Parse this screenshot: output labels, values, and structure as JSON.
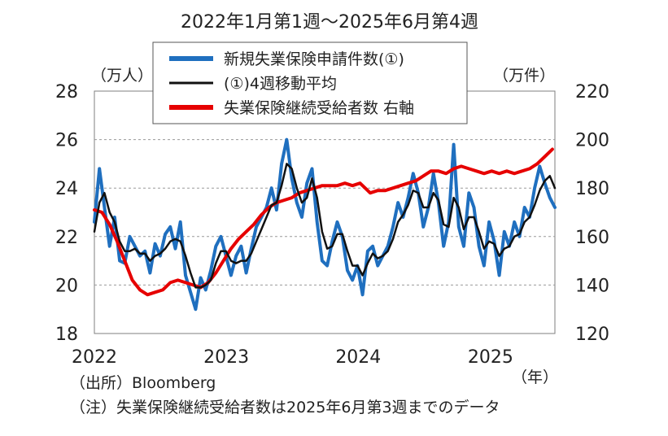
{
  "chart_data": {
    "type": "line",
    "title": "2022年1月第1週～2025年6月第4週",
    "y_left_unit": "（万人）",
    "y_right_unit": "（万件）",
    "x_unit": "（年）",
    "y_left_range": [
      18,
      28
    ],
    "y_left_ticks": [
      "18",
      "20",
      "22",
      "24",
      "26",
      "28"
    ],
    "y_right_range": [
      120,
      220
    ],
    "y_right_ticks": [
      "120",
      "140",
      "160",
      "180",
      "200",
      "220"
    ],
    "x_range": [
      "2022-01",
      "2025-06"
    ],
    "x_tick_labels": [
      "2022",
      "2023",
      "2024",
      "2025"
    ],
    "grid": "horizontal-dashed",
    "legend_position": "top-center",
    "series": [
      {
        "name": "新規失業保険申請件数(①)",
        "color": "#1f6fbf",
        "axis": "left",
        "points": [
          [
            "2022-01-01",
            22.6
          ],
          [
            "2022-01-15",
            24.8
          ],
          [
            "2022-01-29",
            23.2
          ],
          [
            "2022-02-12",
            21.6
          ],
          [
            "2022-02-26",
            22.8
          ],
          [
            "2022-03-12",
            21.0
          ],
          [
            "2022-03-26",
            20.9
          ],
          [
            "2022-04-09",
            22.0
          ],
          [
            "2022-04-23",
            21.6
          ],
          [
            "2022-05-07",
            21.2
          ],
          [
            "2022-05-21",
            21.4
          ],
          [
            "2022-06-04",
            20.5
          ],
          [
            "2022-06-18",
            21.7
          ],
          [
            "2022-07-02",
            21.2
          ],
          [
            "2022-07-16",
            22.1
          ],
          [
            "2022-07-30",
            22.4
          ],
          [
            "2022-08-13",
            21.5
          ],
          [
            "2022-08-27",
            22.6
          ],
          [
            "2022-09-10",
            20.4
          ],
          [
            "2022-09-24",
            19.7
          ],
          [
            "2022-10-08",
            19.0
          ],
          [
            "2022-10-22",
            20.3
          ],
          [
            "2022-11-05",
            19.8
          ],
          [
            "2022-11-19",
            20.6
          ],
          [
            "2022-12-03",
            21.6
          ],
          [
            "2022-12-17",
            22.0
          ],
          [
            "2022-12-31",
            21.2
          ],
          [
            "2023-01-14",
            20.4
          ],
          [
            "2023-01-28",
            21.2
          ],
          [
            "2023-02-11",
            21.6
          ],
          [
            "2023-02-25",
            20.5
          ],
          [
            "2023-03-11",
            21.5
          ],
          [
            "2023-03-25",
            22.4
          ],
          [
            "2023-04-08",
            22.8
          ],
          [
            "2023-04-22",
            23.2
          ],
          [
            "2023-05-06",
            24.0
          ],
          [
            "2023-05-20",
            23.1
          ],
          [
            "2023-06-03",
            25.0
          ],
          [
            "2023-06-17",
            26.0
          ],
          [
            "2023-07-01",
            24.4
          ],
          [
            "2023-07-15",
            23.4
          ],
          [
            "2023-07-29",
            22.8
          ],
          [
            "2023-08-12",
            24.2
          ],
          [
            "2023-08-26",
            24.8
          ],
          [
            "2023-09-09",
            22.6
          ],
          [
            "2023-09-23",
            21.0
          ],
          [
            "2023-10-07",
            20.8
          ],
          [
            "2023-10-21",
            21.8
          ],
          [
            "2023-11-04",
            22.6
          ],
          [
            "2023-11-18",
            22.0
          ],
          [
            "2023-12-02",
            20.6
          ],
          [
            "2023-12-16",
            20.2
          ],
          [
            "2023-12-30",
            20.8
          ],
          [
            "2024-01-13",
            19.6
          ],
          [
            "2024-01-27",
            21.4
          ],
          [
            "2024-02-10",
            21.6
          ],
          [
            "2024-02-24",
            20.8
          ],
          [
            "2024-03-09",
            21.2
          ],
          [
            "2024-03-23",
            21.6
          ],
          [
            "2024-04-06",
            22.4
          ],
          [
            "2024-04-20",
            23.4
          ],
          [
            "2024-05-04",
            22.8
          ],
          [
            "2024-05-18",
            23.6
          ],
          [
            "2024-06-01",
            24.6
          ],
          [
            "2024-06-15",
            23.8
          ],
          [
            "2024-06-29",
            22.4
          ],
          [
            "2024-07-13",
            23.2
          ],
          [
            "2024-07-27",
            24.6
          ],
          [
            "2024-08-10",
            23.4
          ],
          [
            "2024-08-24",
            21.6
          ],
          [
            "2024-09-07",
            22.6
          ],
          [
            "2024-09-21",
            25.8
          ],
          [
            "2024-10-05",
            22.4
          ],
          [
            "2024-10-19",
            21.6
          ],
          [
            "2024-11-02",
            23.8
          ],
          [
            "2024-11-16",
            23.2
          ],
          [
            "2024-11-30",
            21.6
          ],
          [
            "2024-12-14",
            20.8
          ],
          [
            "2024-12-28",
            22.6
          ],
          [
            "2025-01-11",
            21.8
          ],
          [
            "2025-01-25",
            20.4
          ],
          [
            "2025-02-08",
            22.2
          ],
          [
            "2025-02-22",
            21.6
          ],
          [
            "2025-03-08",
            22.6
          ],
          [
            "2025-03-22",
            22.0
          ],
          [
            "2025-04-05",
            23.2
          ],
          [
            "2025-04-19",
            22.8
          ],
          [
            "2025-05-03",
            24.0
          ],
          [
            "2025-05-17",
            24.9
          ],
          [
            "2025-05-31",
            24.2
          ],
          [
            "2025-06-14",
            23.6
          ],
          [
            "2025-06-28",
            23.2
          ]
        ]
      },
      {
        "name": "(①)4週移動平均",
        "color": "#111111",
        "axis": "left",
        "points": [
          [
            "2022-01-01",
            22.2
          ],
          [
            "2022-01-15",
            23.4
          ],
          [
            "2022-01-29",
            23.8
          ],
          [
            "2022-02-12",
            23.0
          ],
          [
            "2022-02-26",
            22.6
          ],
          [
            "2022-03-12",
            21.8
          ],
          [
            "2022-03-26",
            21.4
          ],
          [
            "2022-04-09",
            21.4
          ],
          [
            "2022-04-23",
            21.5
          ],
          [
            "2022-05-07",
            21.3
          ],
          [
            "2022-05-21",
            21.3
          ],
          [
            "2022-06-04",
            21.0
          ],
          [
            "2022-06-18",
            21.2
          ],
          [
            "2022-07-02",
            21.3
          ],
          [
            "2022-07-16",
            21.5
          ],
          [
            "2022-07-30",
            21.8
          ],
          [
            "2022-08-13",
            21.9
          ],
          [
            "2022-08-27",
            21.8
          ],
          [
            "2022-09-10",
            21.2
          ],
          [
            "2022-09-24",
            20.5
          ],
          [
            "2022-10-08",
            19.9
          ],
          [
            "2022-10-22",
            19.9
          ],
          [
            "2022-11-05",
            20.0
          ],
          [
            "2022-11-19",
            20.2
          ],
          [
            "2022-12-03",
            20.9
          ],
          [
            "2022-12-17",
            21.4
          ],
          [
            "2022-12-31",
            21.4
          ],
          [
            "2023-01-14",
            21.0
          ],
          [
            "2023-01-28",
            20.9
          ],
          [
            "2023-02-11",
            21.0
          ],
          [
            "2023-02-25",
            21.0
          ],
          [
            "2023-03-11",
            21.3
          ],
          [
            "2023-03-25",
            21.8
          ],
          [
            "2023-04-08",
            22.3
          ],
          [
            "2023-04-22",
            22.8
          ],
          [
            "2023-05-06",
            23.3
          ],
          [
            "2023-05-20",
            23.4
          ],
          [
            "2023-06-03",
            24.1
          ],
          [
            "2023-06-17",
            25.0
          ],
          [
            "2023-07-01",
            24.8
          ],
          [
            "2023-07-15",
            24.0
          ],
          [
            "2023-07-29",
            23.4
          ],
          [
            "2023-08-12",
            23.6
          ],
          [
            "2023-08-26",
            24.4
          ],
          [
            "2023-09-09",
            23.6
          ],
          [
            "2023-09-23",
            22.2
          ],
          [
            "2023-10-07",
            21.5
          ],
          [
            "2023-10-21",
            21.6
          ],
          [
            "2023-11-04",
            22.1
          ],
          [
            "2023-11-18",
            22.1
          ],
          [
            "2023-12-02",
            21.4
          ],
          [
            "2023-12-16",
            20.8
          ],
          [
            "2023-12-30",
            20.8
          ],
          [
            "2024-01-13",
            20.4
          ],
          [
            "2024-01-27",
            20.9
          ],
          [
            "2024-02-10",
            21.3
          ],
          [
            "2024-02-24",
            21.1
          ],
          [
            "2024-03-09",
            21.2
          ],
          [
            "2024-03-23",
            21.4
          ],
          [
            "2024-04-06",
            21.9
          ],
          [
            "2024-04-20",
            22.6
          ],
          [
            "2024-05-04",
            22.9
          ],
          [
            "2024-05-18",
            23.3
          ],
          [
            "2024-06-01",
            23.9
          ],
          [
            "2024-06-15",
            23.8
          ],
          [
            "2024-06-29",
            23.2
          ],
          [
            "2024-07-13",
            23.2
          ],
          [
            "2024-07-27",
            23.8
          ],
          [
            "2024-08-10",
            23.5
          ],
          [
            "2024-08-24",
            22.5
          ],
          [
            "2024-09-07",
            22.4
          ],
          [
            "2024-09-21",
            23.6
          ],
          [
            "2024-10-05",
            23.2
          ],
          [
            "2024-10-19",
            22.3
          ],
          [
            "2024-11-02",
            22.8
          ],
          [
            "2024-11-16",
            22.8
          ],
          [
            "2024-11-30",
            22.2
          ],
          [
            "2024-12-14",
            21.5
          ],
          [
            "2024-12-28",
            21.8
          ],
          [
            "2025-01-11",
            21.7
          ],
          [
            "2025-01-25",
            21.2
          ],
          [
            "2025-02-08",
            21.5
          ],
          [
            "2025-02-22",
            21.6
          ],
          [
            "2025-03-08",
            22.0
          ],
          [
            "2025-03-22",
            22.1
          ],
          [
            "2025-04-05",
            22.6
          ],
          [
            "2025-04-19",
            22.8
          ],
          [
            "2025-05-03",
            23.3
          ],
          [
            "2025-05-17",
            23.9
          ],
          [
            "2025-05-31",
            24.3
          ],
          [
            "2025-06-14",
            24.5
          ],
          [
            "2025-06-28",
            24.0
          ]
        ]
      },
      {
        "name": "失業保険継続受給者数 右軸",
        "color": "#e60000",
        "axis": "right",
        "points": [
          [
            "2022-01-01",
            171
          ],
          [
            "2022-01-22",
            170
          ],
          [
            "2022-02-12",
            165
          ],
          [
            "2022-03-05",
            158
          ],
          [
            "2022-03-26",
            150
          ],
          [
            "2022-04-16",
            142
          ],
          [
            "2022-05-07",
            138
          ],
          [
            "2022-05-28",
            136
          ],
          [
            "2022-06-18",
            137
          ],
          [
            "2022-07-09",
            138
          ],
          [
            "2022-07-30",
            141
          ],
          [
            "2022-08-20",
            142
          ],
          [
            "2022-09-10",
            141
          ],
          [
            "2022-10-01",
            140
          ],
          [
            "2022-10-22",
            139
          ],
          [
            "2022-11-12",
            141
          ],
          [
            "2022-12-03",
            145
          ],
          [
            "2022-12-24",
            150
          ],
          [
            "2023-01-14",
            155
          ],
          [
            "2023-02-04",
            159
          ],
          [
            "2023-02-25",
            162
          ],
          [
            "2023-03-18",
            165
          ],
          [
            "2023-04-08",
            169
          ],
          [
            "2023-04-29",
            172
          ],
          [
            "2023-05-20",
            174
          ],
          [
            "2023-06-10",
            175
          ],
          [
            "2023-07-01",
            176
          ],
          [
            "2023-07-22",
            178
          ],
          [
            "2023-08-12",
            179
          ],
          [
            "2023-09-02",
            180
          ],
          [
            "2023-09-23",
            181
          ],
          [
            "2023-10-14",
            181
          ],
          [
            "2023-11-04",
            181
          ],
          [
            "2023-11-25",
            182
          ],
          [
            "2023-12-16",
            181
          ],
          [
            "2024-01-06",
            182
          ],
          [
            "2024-01-20",
            180
          ],
          [
            "2024-02-03",
            178
          ],
          [
            "2024-02-24",
            179
          ],
          [
            "2024-03-16",
            179
          ],
          [
            "2024-04-06",
            180
          ],
          [
            "2024-04-27",
            181
          ],
          [
            "2024-05-18",
            182
          ],
          [
            "2024-06-08",
            183
          ],
          [
            "2024-06-29",
            185
          ],
          [
            "2024-07-20",
            187
          ],
          [
            "2024-08-10",
            187
          ],
          [
            "2024-08-31",
            186
          ],
          [
            "2024-09-21",
            188
          ],
          [
            "2024-10-12",
            189
          ],
          [
            "2024-11-02",
            188
          ],
          [
            "2024-11-23",
            187
          ],
          [
            "2024-12-14",
            186
          ],
          [
            "2025-01-04",
            187
          ],
          [
            "2025-01-25",
            186
          ],
          [
            "2025-02-15",
            187
          ],
          [
            "2025-03-08",
            186
          ],
          [
            "2025-03-29",
            187
          ],
          [
            "2025-04-19",
            188
          ],
          [
            "2025-05-10",
            190
          ],
          [
            "2025-05-31",
            193
          ],
          [
            "2025-06-21",
            196
          ]
        ]
      }
    ]
  },
  "notes": {
    "source": "（出所）Bloomberg",
    "caveat": "（注）失業保険継続受給者数は2025年6月第3週までのデータ"
  }
}
